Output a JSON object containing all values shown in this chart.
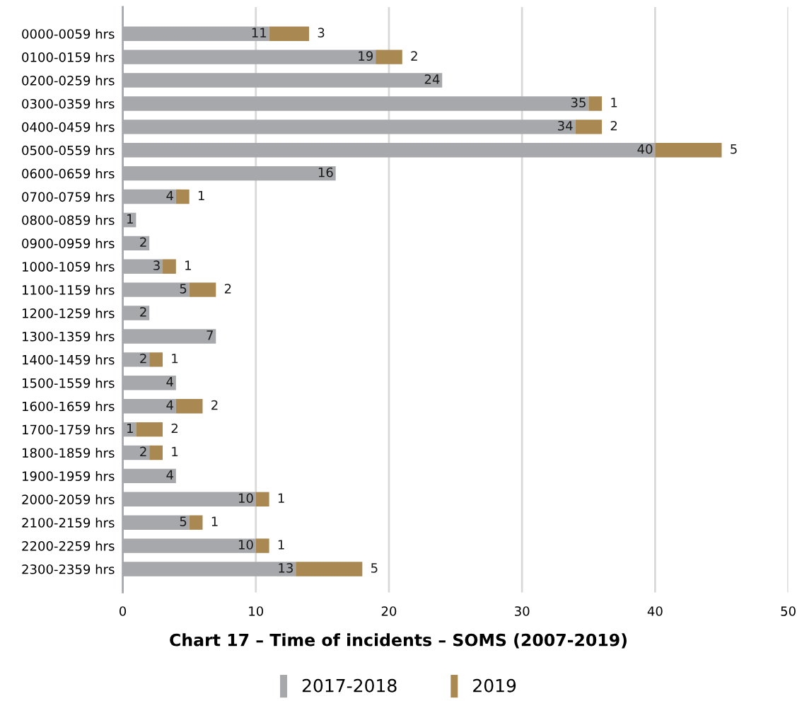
{
  "chart_data": {
    "type": "bar",
    "orientation": "horizontal",
    "stacked": true,
    "title": "Chart 17 – Time of incidents – SOMS (2007-2019)",
    "categories": [
      "0000-0059 hrs",
      "0100-0159 hrs",
      "0200-0259 hrs",
      "0300-0359 hrs",
      "0400-0459 hrs",
      "0500-0559 hrs",
      "0600-0659 hrs",
      "0700-0759 hrs",
      "0800-0859 hrs",
      "0900-0959 hrs",
      "1000-1059 hrs",
      "1100-1159 hrs",
      "1200-1259 hrs",
      "1300-1359 hrs",
      "1400-1459 hrs",
      "1500-1559 hrs",
      "1600-1659 hrs",
      "1700-1759 hrs",
      "1800-1859 hrs",
      "1900-1959 hrs",
      "2000-2059 hrs",
      "2100-2159 hrs",
      "2200-2259 hrs",
      "2300-2359 hrs"
    ],
    "series": [
      {
        "name": "2017-2018",
        "color": "#a7a8ab",
        "values": [
          11,
          19,
          24,
          35,
          34,
          40,
          16,
          4,
          1,
          2,
          3,
          5,
          2,
          7,
          2,
          4,
          4,
          1,
          2,
          4,
          10,
          5,
          10,
          13
        ]
      },
      {
        "name": "2019",
        "color": "#aa8852",
        "values": [
          3,
          2,
          null,
          1,
          2,
          5,
          null,
          1,
          null,
          null,
          1,
          2,
          null,
          null,
          1,
          null,
          2,
          2,
          1,
          null,
          1,
          1,
          1,
          5
        ]
      }
    ],
    "xlim": [
      0,
      50
    ],
    "xticks": [
      0,
      10,
      20,
      30,
      40,
      50
    ],
    "grid": "x",
    "legend": "bottom",
    "data_labels": true
  }
}
